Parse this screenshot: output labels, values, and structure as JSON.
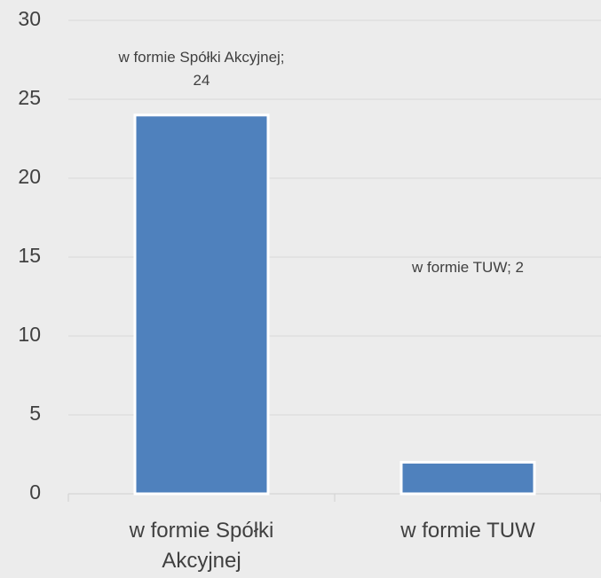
{
  "chart_data": {
    "type": "bar",
    "categories": [
      "w formie Spółki Akcyjnej",
      "w formie TUW"
    ],
    "values": [
      24,
      2
    ],
    "value_labels": [
      "w formie Spółki Akcyjnej; 24",
      "w formie TUW; 2"
    ],
    "color": "#4f81bd",
    "ylim": [
      0,
      30
    ],
    "yticks": [
      0,
      5,
      10,
      15,
      20,
      25,
      30
    ],
    "grid": true
  }
}
